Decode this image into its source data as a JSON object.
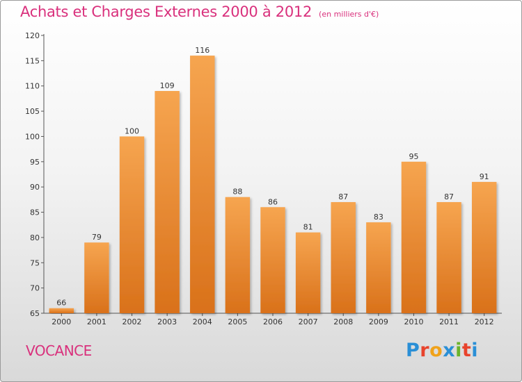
{
  "header": {
    "title": "Achats et Charges Externes 2000 à 2012",
    "subtitle": "(en milliers d'€)"
  },
  "footer": {
    "commune": "VOCANCE",
    "logo_text": "Proxiti",
    "logo_colors": [
      "#2a8fd6",
      "#e8432c",
      "#f0a21a",
      "#2a8fd6",
      "#6ab42c",
      "#e8432c",
      "#2a8fd6"
    ]
  },
  "colors": {
    "accent": "#d9307c",
    "bar_top": "#f6a550",
    "bar_bottom": "#d9711a",
    "axis": "#555555"
  },
  "chart_data": {
    "type": "bar",
    "title": "Achats et Charges Externes 2000 à 2012",
    "subtitle": "(en milliers d'€)",
    "categories": [
      "2000",
      "2001",
      "2002",
      "2003",
      "2004",
      "2005",
      "2006",
      "2007",
      "2008",
      "2009",
      "2010",
      "2011",
      "2012"
    ],
    "values": [
      66,
      79,
      100,
      109,
      116,
      88,
      86,
      81,
      87,
      83,
      95,
      87,
      91
    ],
    "ylim": [
      65,
      120
    ],
    "yticks": [
      65,
      70,
      75,
      80,
      85,
      90,
      95,
      100,
      105,
      110,
      115,
      120
    ],
    "xlabel": "",
    "ylabel": "",
    "grid": false,
    "legend": "none"
  }
}
